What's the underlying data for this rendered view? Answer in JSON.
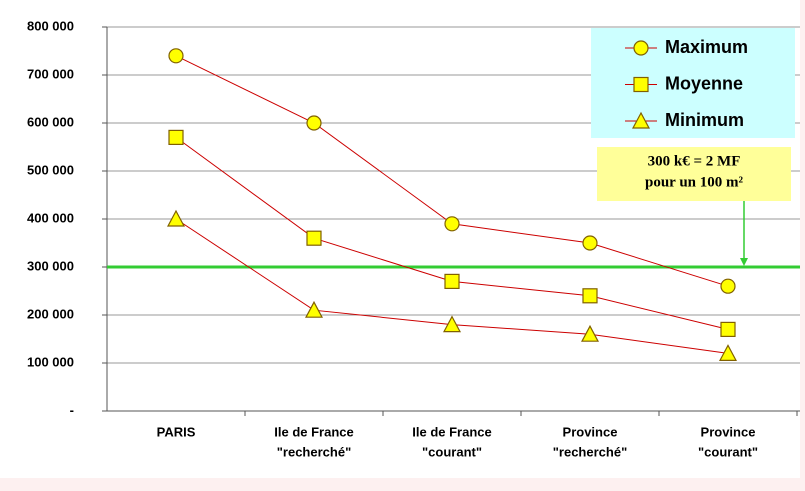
{
  "chart_data": {
    "type": "line",
    "categories": [
      [
        "PARIS"
      ],
      [
        "Ile de France",
        "\"recherché\""
      ],
      [
        "Ile de France",
        "\"courant\""
      ],
      [
        "Province",
        "\"recherché\""
      ],
      [
        "Province",
        "\"courant\""
      ]
    ],
    "series": [
      {
        "name": "Maximum",
        "color": "#cc0000",
        "marker": "circle",
        "values": [
          740000,
          600000,
          390000,
          350000,
          260000
        ]
      },
      {
        "name": "Moyenne",
        "color": "#cc0000",
        "marker": "square",
        "values": [
          570000,
          360000,
          270000,
          240000,
          170000
        ]
      },
      {
        "name": "Minimum",
        "color": "#cc0000",
        "marker": "triangle",
        "values": [
          400000,
          210000,
          180000,
          160000,
          120000
        ]
      }
    ],
    "marker_fill": "#ffff00",
    "ylim": [
      0,
      800000
    ],
    "yticks": [
      {
        "value": 0,
        "label": "-"
      },
      {
        "value": 100000,
        "label": "100 000"
      },
      {
        "value": 200000,
        "label": "200 000"
      },
      {
        "value": 300000,
        "label": "300 000"
      },
      {
        "value": 400000,
        "label": "400 000"
      },
      {
        "value": 500000,
        "label": "500 000"
      },
      {
        "value": 600000,
        "label": "600 000"
      },
      {
        "value": 700000,
        "label": "700 000"
      },
      {
        "value": 800000,
        "label": "800 000"
      }
    ],
    "grid": true,
    "legend_position": "upper right",
    "reference_line": {
      "value": 300000,
      "color": "#33cc33"
    },
    "annotation": [
      "300 k€ = 2 MF",
      "pour un 100 m²"
    ]
  }
}
